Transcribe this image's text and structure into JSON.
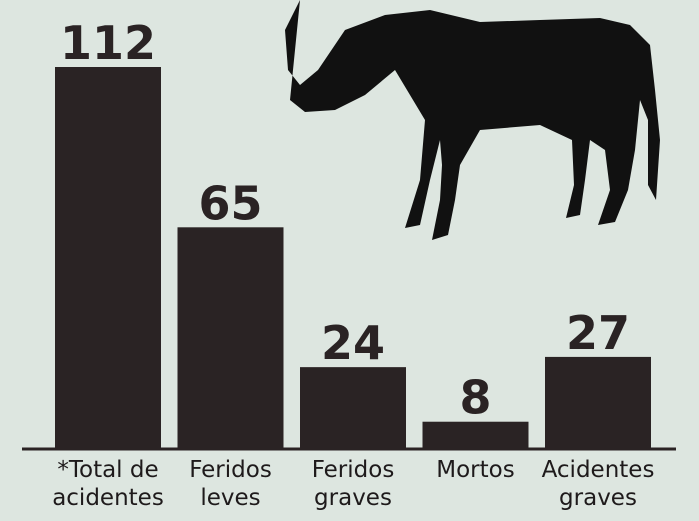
{
  "chart_data": {
    "type": "bar",
    "categories": [
      "*Total de\nacidentes",
      "Feridos\nleves",
      "Feridos\ngraves",
      "Mortos",
      "Acidentes\ngraves"
    ],
    "values": [
      112,
      65,
      24,
      8,
      27
    ],
    "color": "#2a2324"
  }
}
